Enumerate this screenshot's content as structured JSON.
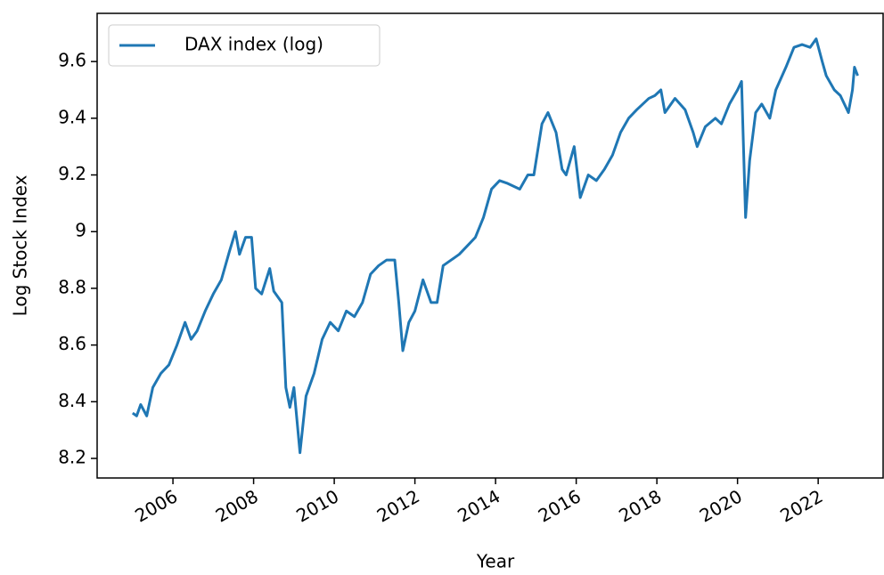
{
  "chart_data": {
    "type": "line",
    "x_label": "Year",
    "y_label": "Log Stock Index",
    "x": [
      2005.0,
      2005.1,
      2005.2,
      2005.35,
      2005.5,
      2005.7,
      2005.9,
      2006.1,
      2006.3,
      2006.45,
      2006.6,
      2006.8,
      2007.0,
      2007.2,
      2007.4,
      2007.55,
      2007.65,
      2007.8,
      2007.95,
      2008.05,
      2008.2,
      2008.4,
      2008.5,
      2008.7,
      2008.8,
      2008.9,
      2009.0,
      2009.15,
      2009.3,
      2009.5,
      2009.7,
      2009.9,
      2010.1,
      2010.3,
      2010.5,
      2010.7,
      2010.9,
      2011.1,
      2011.3,
      2011.5,
      2011.6,
      2011.7,
      2011.85,
      2012.0,
      2012.2,
      2012.4,
      2012.55,
      2012.7,
      2012.9,
      2013.1,
      2013.3,
      2013.5,
      2013.7,
      2013.9,
      2014.1,
      2014.3,
      2014.6,
      2014.8,
      2014.95,
      2015.15,
      2015.3,
      2015.5,
      2015.65,
      2015.75,
      2015.95,
      2016.1,
      2016.3,
      2016.5,
      2016.7,
      2016.9,
      2017.1,
      2017.3,
      2017.5,
      2017.8,
      2017.95,
      2018.1,
      2018.2,
      2018.45,
      2018.7,
      2018.9,
      2019.0,
      2019.2,
      2019.45,
      2019.6,
      2019.8,
      2020.0,
      2020.1,
      2020.2,
      2020.3,
      2020.45,
      2020.6,
      2020.8,
      2020.95,
      2021.2,
      2021.4,
      2021.6,
      2021.8,
      2021.95,
      2022.1,
      2022.2,
      2022.4,
      2022.55,
      2022.75,
      2022.85,
      2022.9,
      2022.98
    ],
    "series": [
      {
        "name": "DAX index (log)",
        "color": "#1f77b4",
        "values": [
          8.36,
          8.35,
          8.39,
          8.35,
          8.45,
          8.5,
          8.53,
          8.6,
          8.68,
          8.62,
          8.65,
          8.72,
          8.78,
          8.83,
          8.93,
          9.0,
          8.92,
          8.98,
          8.98,
          8.8,
          8.78,
          8.87,
          8.79,
          8.75,
          8.45,
          8.38,
          8.45,
          8.22,
          8.42,
          8.5,
          8.62,
          8.68,
          8.65,
          8.72,
          8.7,
          8.75,
          8.85,
          8.88,
          8.9,
          8.9,
          8.75,
          8.58,
          8.68,
          8.72,
          8.83,
          8.75,
          8.75,
          8.88,
          8.9,
          8.92,
          8.95,
          8.98,
          9.05,
          9.15,
          9.18,
          9.17,
          9.15,
          9.2,
          9.2,
          9.38,
          9.42,
          9.35,
          9.22,
          9.2,
          9.3,
          9.12,
          9.2,
          9.18,
          9.22,
          9.27,
          9.35,
          9.4,
          9.43,
          9.47,
          9.48,
          9.5,
          9.42,
          9.47,
          9.43,
          9.35,
          9.3,
          9.37,
          9.4,
          9.38,
          9.45,
          9.5,
          9.53,
          9.05,
          9.25,
          9.42,
          9.45,
          9.4,
          9.5,
          9.58,
          9.65,
          9.66,
          9.65,
          9.68,
          9.6,
          9.55,
          9.5,
          9.48,
          9.42,
          9.5,
          9.58,
          9.55
        ]
      }
    ],
    "xlim": [
      2004.12,
      2023.61
    ],
    "xticks": [
      2006,
      2008,
      2010,
      2012,
      2014,
      2016,
      2018,
      2020,
      2022
    ],
    "ylim": [
      8.131,
      9.77
    ],
    "yticks": [
      8.2,
      8.4,
      8.6,
      8.8,
      9.0,
      9.2,
      9.4,
      9.6
    ],
    "legend": "upper left",
    "grid": false
  }
}
